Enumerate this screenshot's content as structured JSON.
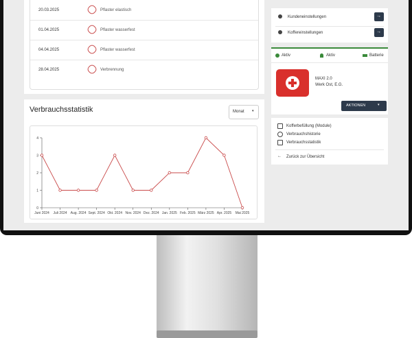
{
  "history": {
    "rows": [
      {
        "date": "20.03.2025",
        "label": "Pflaster elastisch"
      },
      {
        "date": "01.04.2025",
        "label": "Pflaster wasserfest"
      },
      {
        "date": "04.04.2025",
        "label": "Pflaster wasserfest"
      },
      {
        "date": "28.04.2025",
        "label": "Verbrennung"
      }
    ]
  },
  "stats": {
    "title": "Verbrauchsstatistik",
    "period": "Monat"
  },
  "chart_data": {
    "type": "line",
    "categories": [
      "Juni 2024",
      "Juli 2024",
      "Aug. 2024",
      "Sept. 2024",
      "Okt. 2024",
      "Nov. 2024",
      "Dez. 2024",
      "Jan. 2025",
      "Feb. 2025",
      "März 2025",
      "Apr. 2025",
      "Mai 2025"
    ],
    "values": [
      3,
      1,
      1,
      1,
      3,
      1,
      1,
      2,
      2,
      4,
      3,
      0
    ],
    "color": "#c94a4a",
    "ylim": [
      0,
      4
    ],
    "yticks": [
      0,
      1,
      2,
      3,
      4
    ]
  },
  "settings": {
    "items": [
      "Kundeneinstellungen",
      "Koffereinstellungen"
    ]
  },
  "device": {
    "status": [
      "Aktiv",
      "Aktiv",
      "Batterie"
    ],
    "name": "MAXI 2.0",
    "location": "Werk Ost, E.G.",
    "action": "AKTIONEN"
  },
  "menu": {
    "items": [
      "Kofferbefüllung (Module)",
      "Verbrauchshistorie",
      "Verbrauchsstatistik"
    ],
    "back": "Zurück zur Übersicht"
  }
}
